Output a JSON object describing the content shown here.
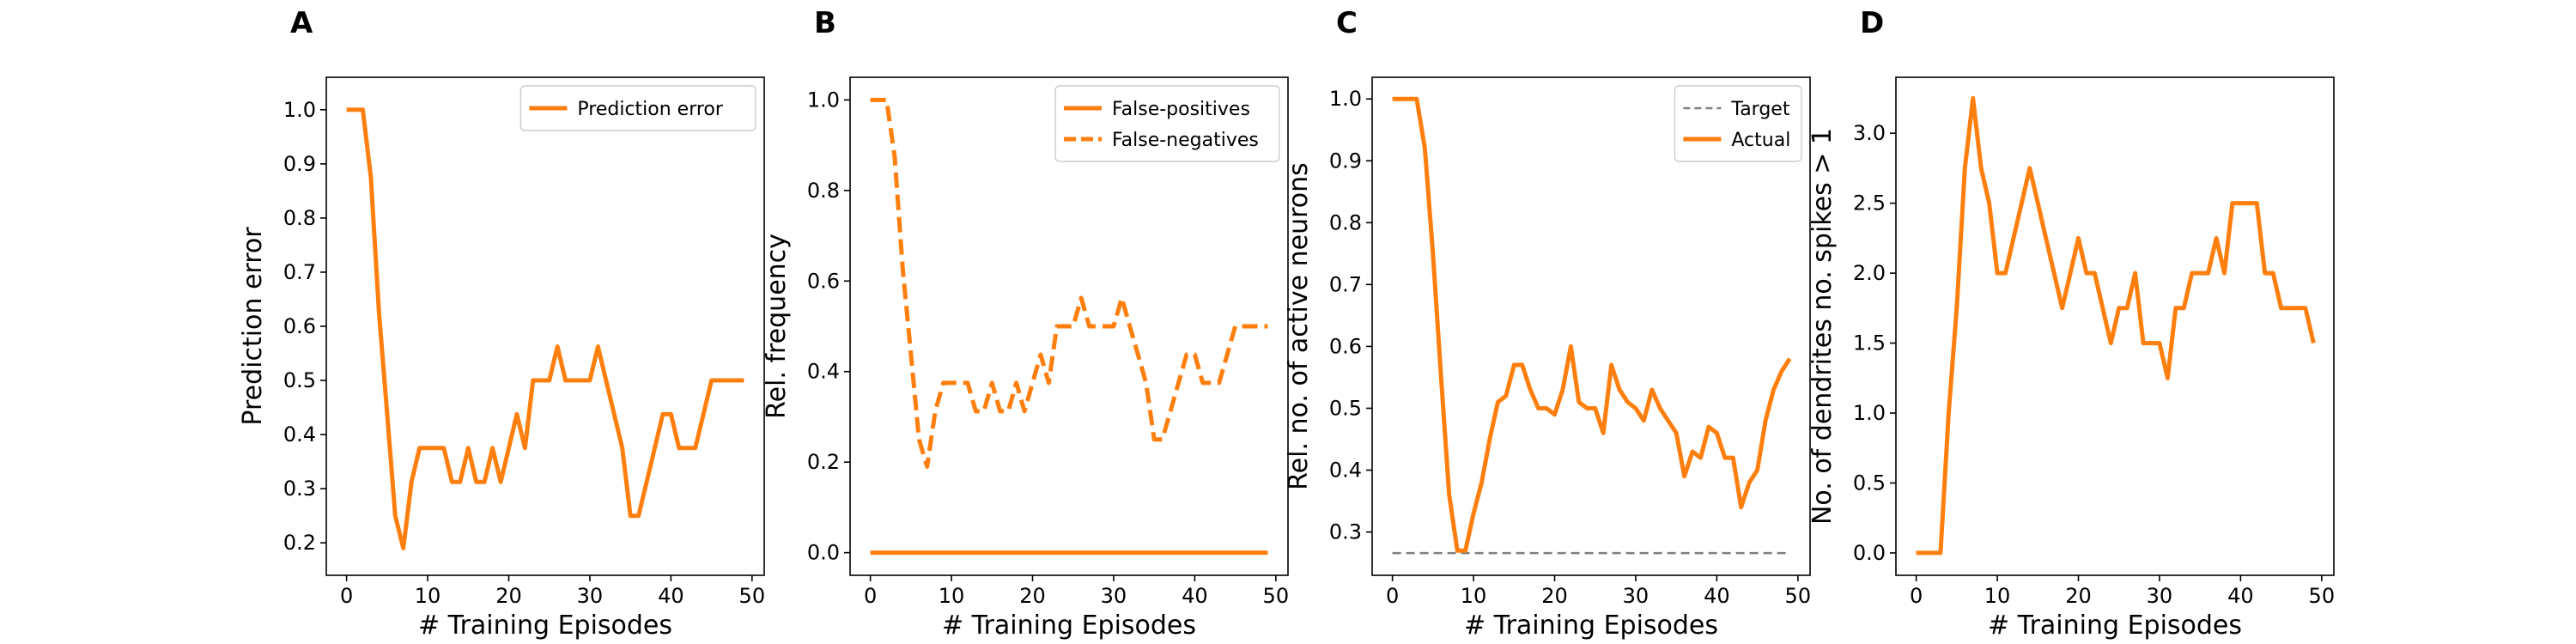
{
  "colors": {
    "orange": "#ff7f0e",
    "gray": "#7f7f7f",
    "axis": "#000000"
  },
  "chart_data": [
    {
      "panel": "A",
      "type": "line",
      "xlabel": "# Training Episodes",
      "ylabel": "Prediction error",
      "xlim": [
        -2.5,
        51.5
      ],
      "ylim": [
        0.14,
        1.06
      ],
      "xticks": [
        0,
        10,
        20,
        30,
        40,
        50
      ],
      "yticks": [
        0.2,
        0.3,
        0.4,
        0.5,
        0.6,
        0.7,
        0.8,
        0.9,
        1.0
      ],
      "ytick_labels": [
        "0.2",
        "0.3",
        "0.4",
        "0.5",
        "0.6",
        "0.7",
        "0.8",
        "0.9",
        "1.0"
      ],
      "legend": {
        "position": "top-right"
      },
      "x": [
        0,
        1,
        2,
        3,
        4,
        5,
        6,
        7,
        8,
        9,
        10,
        11,
        12,
        13,
        14,
        15,
        16,
        17,
        18,
        19,
        20,
        21,
        22,
        23,
        24,
        25,
        26,
        27,
        28,
        29,
        30,
        31,
        32,
        33,
        34,
        35,
        36,
        37,
        38,
        39,
        40,
        41,
        42,
        43,
        44,
        45,
        46,
        47,
        48,
        49
      ],
      "series": [
        {
          "name": "Prediction error",
          "style": "solid",
          "color": "#ff7f0e",
          "values": [
            1.0,
            1.0,
            1.0,
            0.875,
            0.625,
            0.44,
            0.25,
            0.19,
            0.3125,
            0.375,
            0.375,
            0.375,
            0.375,
            0.3125,
            0.3125,
            0.375,
            0.3125,
            0.3125,
            0.375,
            0.3125,
            0.375,
            0.4375,
            0.375,
            0.5,
            0.5,
            0.5,
            0.5625,
            0.5,
            0.5,
            0.5,
            0.5,
            0.5625,
            0.5,
            0.4375,
            0.375,
            0.25,
            0.25,
            0.3125,
            0.375,
            0.4375,
            0.4375,
            0.375,
            0.375,
            0.375,
            0.4375,
            0.5,
            0.5,
            0.5,
            0.5,
            0.5
          ]
        }
      ]
    },
    {
      "panel": "B",
      "type": "line",
      "xlabel": "# Training Episodes",
      "ylabel": "Rel. frequency",
      "xlim": [
        -2.5,
        51.5
      ],
      "ylim": [
        -0.05,
        1.05
      ],
      "xticks": [
        0,
        10,
        20,
        30,
        40,
        50
      ],
      "yticks": [
        0.0,
        0.2,
        0.4,
        0.6,
        0.8,
        1.0
      ],
      "ytick_labels": [
        "0.0",
        "0.2",
        "0.4",
        "0.6",
        "0.8",
        "1.0"
      ],
      "legend": {
        "position": "top-right"
      },
      "x": [
        0,
        1,
        2,
        3,
        4,
        5,
        6,
        7,
        8,
        9,
        10,
        11,
        12,
        13,
        14,
        15,
        16,
        17,
        18,
        19,
        20,
        21,
        22,
        23,
        24,
        25,
        26,
        27,
        28,
        29,
        30,
        31,
        32,
        33,
        34,
        35,
        36,
        37,
        38,
        39,
        40,
        41,
        42,
        43,
        44,
        45,
        46,
        47,
        48,
        49
      ],
      "series": [
        {
          "name": "False-positives",
          "style": "solid",
          "color": "#ff7f0e",
          "values": [
            0,
            0,
            0,
            0,
            0,
            0,
            0,
            0,
            0,
            0,
            0,
            0,
            0,
            0,
            0,
            0,
            0,
            0,
            0,
            0,
            0,
            0,
            0,
            0,
            0,
            0,
            0,
            0,
            0,
            0,
            0,
            0,
            0,
            0,
            0,
            0,
            0,
            0,
            0,
            0,
            0,
            0,
            0,
            0,
            0,
            0,
            0,
            0,
            0,
            0
          ]
        },
        {
          "name": "False-negatives",
          "style": "dashed",
          "color": "#ff7f0e",
          "values": [
            1.0,
            1.0,
            1.0,
            0.875,
            0.625,
            0.44,
            0.25,
            0.19,
            0.3125,
            0.375,
            0.375,
            0.375,
            0.375,
            0.3125,
            0.3125,
            0.375,
            0.3125,
            0.3125,
            0.375,
            0.3125,
            0.375,
            0.4375,
            0.375,
            0.5,
            0.5,
            0.5,
            0.5625,
            0.5,
            0.5,
            0.5,
            0.5,
            0.5625,
            0.5,
            0.4375,
            0.375,
            0.25,
            0.25,
            0.3125,
            0.375,
            0.4375,
            0.4375,
            0.375,
            0.375,
            0.375,
            0.4375,
            0.5,
            0.5,
            0.5,
            0.5,
            0.5
          ]
        }
      ]
    },
    {
      "panel": "C",
      "type": "line",
      "xlabel": "# Training Episodes",
      "ylabel": "Rel. no. of active neurons",
      "xlim": [
        -2.5,
        51.5
      ],
      "ylim": [
        0.23,
        1.035
      ],
      "xticks": [
        0,
        10,
        20,
        30,
        40,
        50
      ],
      "yticks": [
        0.3,
        0.4,
        0.5,
        0.6,
        0.7,
        0.8,
        0.9,
        1.0
      ],
      "ytick_labels": [
        "0.3",
        "0.4",
        "0.5",
        "0.6",
        "0.7",
        "0.8",
        "0.9",
        "1.0"
      ],
      "legend": {
        "position": "top-right"
      },
      "x": [
        0,
        1,
        2,
        3,
        4,
        5,
        6,
        7,
        8,
        9,
        10,
        11,
        12,
        13,
        14,
        15,
        16,
        17,
        18,
        19,
        20,
        21,
        22,
        23,
        24,
        25,
        26,
        27,
        28,
        29,
        30,
        31,
        32,
        33,
        34,
        35,
        36,
        37,
        38,
        39,
        40,
        41,
        42,
        43,
        44,
        45,
        46,
        47,
        48,
        49
      ],
      "series": [
        {
          "name": "Target",
          "style": "dashed-thin",
          "color": "#7f7f7f",
          "values": [
            0.266,
            0.266,
            0.266,
            0.266,
            0.266,
            0.266,
            0.266,
            0.266,
            0.266,
            0.266,
            0.266,
            0.266,
            0.266,
            0.266,
            0.266,
            0.266,
            0.266,
            0.266,
            0.266,
            0.266,
            0.266,
            0.266,
            0.266,
            0.266,
            0.266,
            0.266,
            0.266,
            0.266,
            0.266,
            0.266,
            0.266,
            0.266,
            0.266,
            0.266,
            0.266,
            0.266,
            0.266,
            0.266,
            0.266,
            0.266,
            0.266,
            0.266,
            0.266,
            0.266,
            0.266,
            0.266,
            0.266,
            0.266,
            0.266,
            0.266
          ]
        },
        {
          "name": "Actual",
          "style": "solid",
          "color": "#ff7f0e",
          "values": [
            1.0,
            1.0,
            1.0,
            1.0,
            0.92,
            0.75,
            0.55,
            0.36,
            0.27,
            0.27,
            0.33,
            0.38,
            0.45,
            0.51,
            0.52,
            0.57,
            0.57,
            0.53,
            0.5,
            0.5,
            0.49,
            0.53,
            0.6,
            0.51,
            0.5,
            0.5,
            0.46,
            0.57,
            0.53,
            0.51,
            0.5,
            0.48,
            0.53,
            0.5,
            0.48,
            0.46,
            0.39,
            0.43,
            0.42,
            0.47,
            0.46,
            0.42,
            0.42,
            0.34,
            0.38,
            0.4,
            0.48,
            0.53,
            0.56,
            0.58
          ]
        }
      ]
    },
    {
      "panel": "D",
      "type": "line",
      "xlabel": "# Training Episodes",
      "ylabel": "No. of dendrites no. spikes > 1",
      "xlim": [
        -2.5,
        51.5
      ],
      "ylim": [
        -0.16,
        3.4
      ],
      "xticks": [
        0,
        10,
        20,
        30,
        40,
        50
      ],
      "yticks": [
        0.0,
        0.5,
        1.0,
        1.5,
        2.0,
        2.5,
        3.0
      ],
      "ytick_labels": [
        "0.0",
        "0.5",
        "1.0",
        "1.5",
        "2.0",
        "2.5",
        "3.0"
      ],
      "x": [
        0,
        1,
        2,
        3,
        4,
        5,
        6,
        7,
        8,
        9,
        10,
        11,
        12,
        13,
        14,
        15,
        16,
        17,
        18,
        19,
        20,
        21,
        22,
        23,
        24,
        25,
        26,
        27,
        28,
        29,
        30,
        31,
        32,
        33,
        34,
        35,
        36,
        37,
        38,
        39,
        40,
        41,
        42,
        43,
        44,
        45,
        46,
        47,
        48,
        49
      ],
      "series": [
        {
          "style": "solid",
          "color": "#ff7f0e",
          "values": [
            0,
            0,
            0,
            0,
            1.0,
            1.75,
            2.75,
            3.25,
            2.75,
            2.5,
            2.0,
            2.0,
            2.25,
            2.5,
            2.75,
            2.5,
            2.25,
            2.0,
            1.75,
            2.0,
            2.25,
            2.0,
            2.0,
            1.75,
            1.5,
            1.75,
            1.75,
            2.0,
            1.5,
            1.5,
            1.5,
            1.25,
            1.75,
            1.75,
            2.0,
            2.0,
            2.0,
            2.25,
            2.0,
            2.5,
            2.5,
            2.5,
            2.5,
            2.0,
            2.0,
            1.75,
            1.75,
            1.75,
            1.75,
            1.5
          ]
        }
      ]
    }
  ]
}
